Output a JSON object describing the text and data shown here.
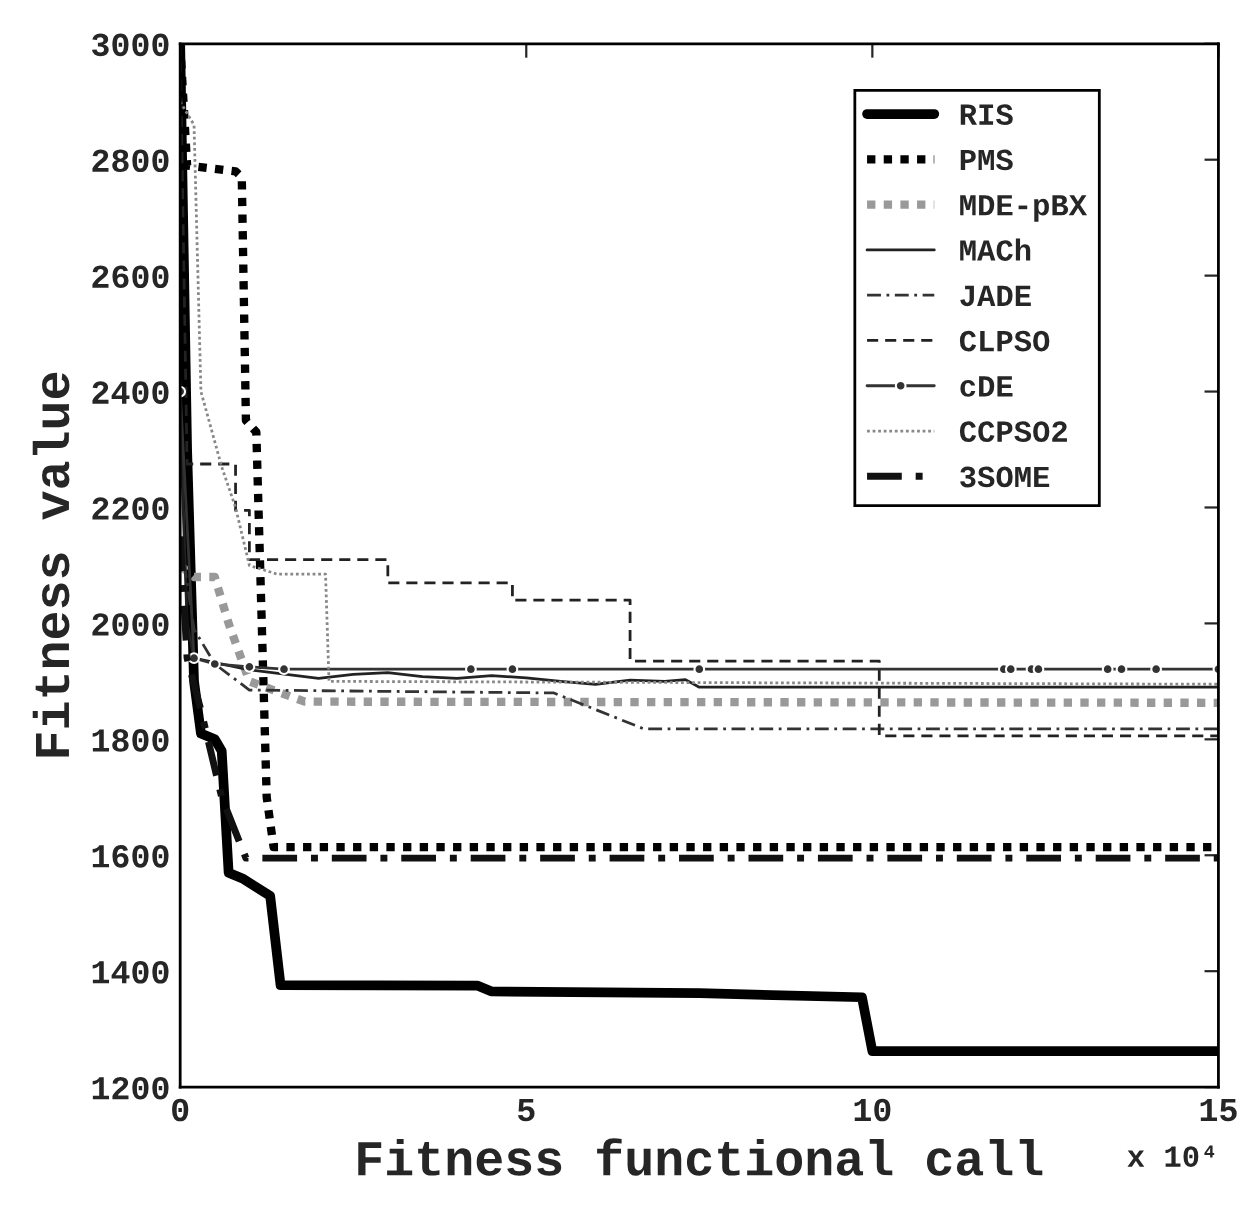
{
  "chart_data": {
    "type": "line",
    "xlabel": "Fitness functional call",
    "ylabel": "Fitness value",
    "annotations": [
      "x 10⁴"
    ],
    "xlim": [
      0,
      15
    ],
    "xticks": [
      0,
      5,
      10,
      15
    ],
    "ylim": [
      1200,
      3000
    ],
    "yticks": [
      1200,
      1400,
      1600,
      1800,
      2000,
      2200,
      2400,
      2600,
      2800,
      3000
    ],
    "grid": false,
    "legend": "top right",
    "series": [
      {
        "name": "RIS",
        "color": "#000000",
        "line_style": "solid",
        "x": [
          0,
          0.1,
          0.2,
          0.3,
          0.5,
          0.6,
          0.7,
          0.9,
          1.3,
          1.45,
          4.3,
          4.5,
          7.5,
          9.85,
          10.0,
          15
        ],
        "values": [
          3000,
          2300,
          1900,
          1810,
          1800,
          1780,
          1570,
          1560,
          1530,
          1376,
          1375,
          1365,
          1362,
          1355,
          1262,
          1262
        ]
      },
      {
        "name": "PMS",
        "color": "#000000",
        "line_style": "dotted",
        "x": [
          0,
          0.1,
          0.8,
          0.89,
          0.95,
          1.1,
          1.25,
          1.35,
          15
        ],
        "values": [
          3000,
          2790,
          2780,
          2770,
          2350,
          2330,
          1700,
          1614,
          1614
        ]
      },
      {
        "name": "MDE-pBX",
        "color": "#999999",
        "line_style": "dotted",
        "x": [
          0,
          0.2,
          0.5,
          0.7,
          1.0,
          1.8,
          15
        ],
        "values": [
          2100,
          2080,
          2080,
          2000,
          1900,
          1865,
          1863
        ]
      },
      {
        "name": "MACh",
        "color": "#222222",
        "line_style": "solid",
        "x": [
          0,
          0.1,
          0.2,
          1.0,
          2.0,
          2.5,
          3.0,
          3.5,
          4.0,
          4.5,
          5.0,
          5.5,
          6.0,
          6.5,
          7.0,
          7.3,
          7.5,
          15
        ],
        "values": [
          2350,
          2000,
          1940,
          1920,
          1905,
          1912,
          1915,
          1908,
          1905,
          1910,
          1906,
          1900,
          1895,
          1902,
          1900,
          1903,
          1890,
          1890
        ]
      },
      {
        "name": "JADE",
        "color": "#333333",
        "line_style": "dashdot",
        "x": [
          0,
          0.2,
          0.5,
          1.0,
          5.4,
          6.7,
          15
        ],
        "values": [
          2150,
          1990,
          1930,
          1885,
          1880,
          1818,
          1818
        ]
      },
      {
        "name": "CLPSO",
        "color": "#222222",
        "line_style": "dashed",
        "x": [
          0,
          0.1,
          0.8,
          0.8,
          1.0,
          1.0,
          3.0,
          3.0,
          4.8,
          4.8,
          6.5,
          6.5,
          10.1,
          10.1,
          15
        ],
        "values": [
          3000,
          2275,
          2275,
          2195,
          2195,
          2110,
          2110,
          2070,
          2070,
          2040,
          2040,
          1935,
          1935,
          1806,
          1806
        ]
      },
      {
        "name": "cDE",
        "color": "#333333",
        "line_style": "solid",
        "marker": "circle",
        "x": [
          0,
          0.1,
          0.2,
          0.5,
          1.0,
          1.5,
          4.2,
          4.8,
          7.5,
          11.9,
          12.0,
          12.3,
          12.4,
          13.4,
          13.6,
          14.1,
          15
        ],
        "values": [
          2400,
          null,
          1940,
          1930,
          1925,
          1921,
          1921,
          1921,
          1921,
          1921,
          1921,
          1921,
          1921,
          1921,
          1921,
          1921,
          1921
        ]
      },
      {
        "name": "CCPSO2",
        "color": "#888888",
        "line_style": "dotted",
        "x": [
          0,
          0.2,
          0.3,
          0.6,
          0.8,
          1.0,
          1.4,
          2.1,
          2.15,
          15
        ],
        "values": [
          2900,
          2860,
          2400,
          2270,
          2200,
          2100,
          2085,
          2085,
          1900,
          1895
        ]
      },
      {
        "name": "3SOME",
        "color": "#111111",
        "line_style": "dashdot",
        "x": [
          0,
          0.1,
          0.3,
          0.6,
          0.95,
          15
        ],
        "values": [
          2150,
          1940,
          1850,
          1700,
          1595,
          1595
        ]
      }
    ]
  }
}
